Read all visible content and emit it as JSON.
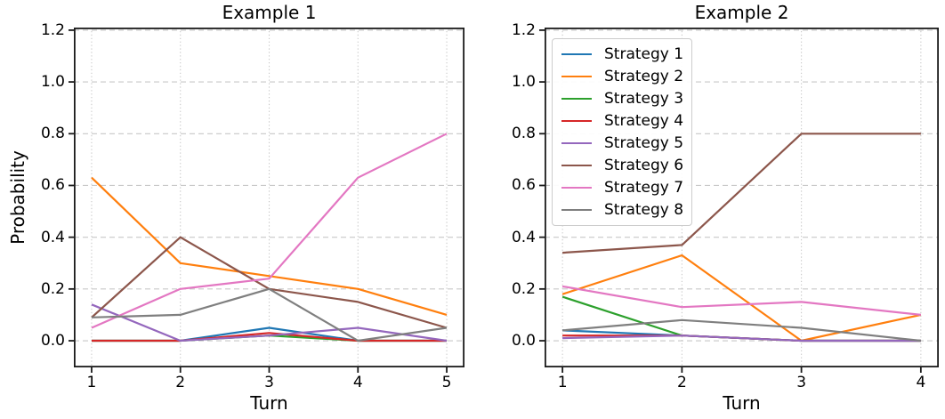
{
  "figure": {
    "background": "#ffffff",
    "text_color": "#000000",
    "grid_color": "#c8c8c8",
    "spine_color": "#1a1a1a"
  },
  "chart_data": [
    {
      "type": "line",
      "title": "Example 1",
      "xlabel": "Turn",
      "ylabel": "Probability",
      "x": [
        1,
        2,
        3,
        4,
        5
      ],
      "yticks": [
        0.0,
        0.2,
        0.4,
        0.6,
        0.8,
        1.0,
        1.2
      ],
      "xlim": [
        0.8,
        5.2
      ],
      "ylim": [
        -0.103,
        1.21
      ],
      "grid": true,
      "legend": false,
      "series": [
        {
          "name": "Strategy 1",
          "color": "#1f77b4",
          "values": [
            0.0,
            0.0,
            0.05,
            0.0,
            0.0
          ]
        },
        {
          "name": "Strategy 2",
          "color": "#ff7f0e",
          "values": [
            0.63,
            0.3,
            0.25,
            0.2,
            0.1
          ]
        },
        {
          "name": "Strategy 3",
          "color": "#2ca02c",
          "values": [
            0.0,
            0.0,
            0.02,
            0.0,
            0.0
          ]
        },
        {
          "name": "Strategy 4",
          "color": "#d62728",
          "values": [
            0.0,
            0.0,
            0.03,
            0.0,
            0.0
          ]
        },
        {
          "name": "Strategy 5",
          "color": "#9467bd",
          "values": [
            0.14,
            0.0,
            0.02,
            0.05,
            0.0
          ]
        },
        {
          "name": "Strategy 6",
          "color": "#8c564b",
          "values": [
            0.09,
            0.4,
            0.2,
            0.15,
            0.05
          ]
        },
        {
          "name": "Strategy 7",
          "color": "#e377c2",
          "values": [
            0.05,
            0.2,
            0.24,
            0.63,
            0.8
          ]
        },
        {
          "name": "Strategy 8",
          "color": "#7f7f7f",
          "values": [
            0.09,
            0.1,
            0.2,
            0.0,
            0.05
          ]
        }
      ]
    },
    {
      "type": "line",
      "title": "Example 2",
      "xlabel": "Turn",
      "ylabel": "",
      "x": [
        1,
        2,
        3,
        4
      ],
      "yticks": [
        0.0,
        0.2,
        0.4,
        0.6,
        0.8,
        1.0,
        1.2
      ],
      "xlim": [
        0.85,
        4.15
      ],
      "ylim": [
        -0.103,
        1.21
      ],
      "grid": true,
      "legend": true,
      "legend_position": "upper left",
      "series": [
        {
          "name": "Strategy 1",
          "color": "#1f77b4",
          "values": [
            0.04,
            0.02,
            0.0,
            0.0
          ]
        },
        {
          "name": "Strategy 2",
          "color": "#ff7f0e",
          "values": [
            0.18,
            0.33,
            0.0,
            0.1
          ]
        },
        {
          "name": "Strategy 3",
          "color": "#2ca02c",
          "values": [
            0.17,
            0.02,
            0.0,
            0.0
          ]
        },
        {
          "name": "Strategy 4",
          "color": "#d62728",
          "values": [
            0.02,
            0.02,
            0.0,
            0.0
          ]
        },
        {
          "name": "Strategy 5",
          "color": "#9467bd",
          "values": [
            0.01,
            0.02,
            0.0,
            0.0
          ]
        },
        {
          "name": "Strategy 6",
          "color": "#8c564b",
          "values": [
            0.34,
            0.37,
            0.8,
            0.8
          ]
        },
        {
          "name": "Strategy 7",
          "color": "#e377c2",
          "values": [
            0.21,
            0.13,
            0.15,
            0.1
          ]
        },
        {
          "name": "Strategy 8",
          "color": "#7f7f7f",
          "values": [
            0.04,
            0.08,
            0.05,
            0.0
          ]
        }
      ]
    }
  ]
}
